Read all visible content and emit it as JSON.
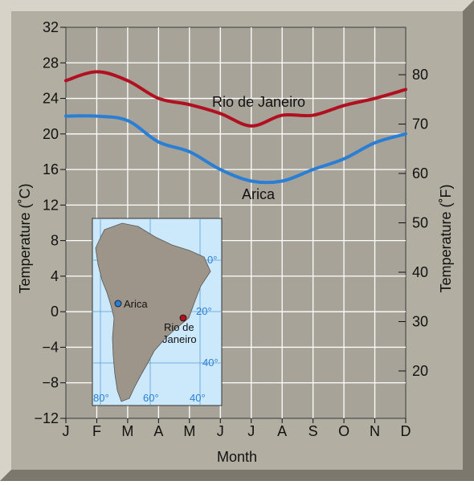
{
  "chart_data": {
    "type": "line",
    "x_categories": [
      "J",
      "F",
      "M",
      "A",
      "M",
      "J",
      "J",
      "A",
      "S",
      "O",
      "N",
      "D"
    ],
    "xlabel": "Month",
    "ylabel_left": "Temperature (˚C)",
    "ylabel_right": "Temperature (˚F)",
    "ylim_c": [
      -12,
      32
    ],
    "yticks_c": [
      32,
      28,
      24,
      20,
      16,
      12,
      8,
      4,
      0,
      -4,
      -8,
      -12
    ],
    "yticks_f": [
      80,
      70,
      60,
      50,
      40,
      30,
      20
    ],
    "grid": true,
    "series": [
      {
        "name": "Rio de Janeiro",
        "color": "#b01020",
        "values": [
          26,
          27,
          26,
          24,
          23.3,
          22.3,
          20.9,
          22.1,
          22.1,
          23.2,
          24,
          25
        ]
      },
      {
        "name": "Arica",
        "color": "#2a7fd4",
        "values": [
          22,
          22,
          21.5,
          19.1,
          18,
          16,
          14.7,
          14.7,
          16,
          17.2,
          19,
          20
        ]
      }
    ]
  },
  "inset_map": {
    "cities": [
      {
        "label": "Arica",
        "color": "#2a7fd4"
      },
      {
        "label_line1": "Rio de",
        "label_line2": "Janeiro",
        "color": "#b01020"
      }
    ],
    "lat_labels": [
      "0°",
      "20°",
      "40°"
    ],
    "lon_labels": [
      "80°",
      "60°",
      "40°"
    ],
    "ocean_color": "#cce8fb",
    "land_color": "#9e958a",
    "grid_color": "#5a9fd4"
  },
  "colors": {
    "frame": "#b3aea2",
    "plot_bg": "#a7a398",
    "grid": "#ffffff"
  }
}
